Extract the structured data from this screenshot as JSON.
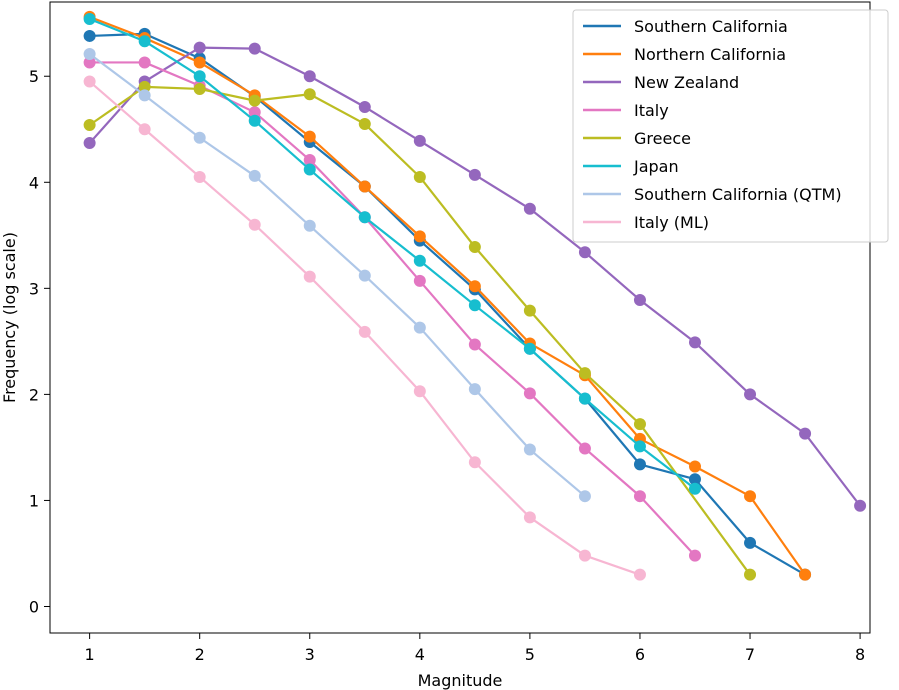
{
  "chart_data": {
    "type": "line",
    "title": "",
    "xlabel": "Magnitude",
    "ylabel": "Frequency (log scale)",
    "xlim": [
      0.64,
      8.09
    ],
    "ylim": [
      -0.25,
      5.7
    ],
    "xticks": [
      1,
      2,
      3,
      4,
      5,
      6,
      7,
      8
    ],
    "yticks": [
      0,
      1,
      2,
      3,
      4,
      5
    ],
    "grid": false,
    "legend_position": "top-right",
    "series": [
      {
        "name": "Southern California",
        "color": "#1f77b4",
        "x": [
          1,
          1.5,
          2,
          2.5,
          3,
          3.5,
          4,
          4.5,
          5,
          5.5,
          6,
          6.5,
          7,
          7.5
        ],
        "y": [
          5.38,
          5.4,
          5.17,
          4.81,
          4.38,
          3.96,
          3.45,
          2.99,
          2.43,
          1.96,
          1.34,
          1.2,
          0.6,
          0.3
        ]
      },
      {
        "name": "Northern California",
        "color": "#ff7f0e",
        "x": [
          1,
          1.5,
          2,
          2.5,
          3,
          3.5,
          4,
          4.5,
          5,
          5.5,
          6,
          6.5,
          7,
          7.5
        ],
        "y": [
          5.56,
          5.36,
          5.13,
          4.82,
          4.43,
          3.96,
          3.49,
          3.02,
          2.48,
          2.18,
          1.58,
          1.32,
          1.04,
          0.3
        ]
      },
      {
        "name": "New Zealand",
        "color": "#9467bd",
        "x": [
          1,
          1.5,
          2,
          2.5,
          3,
          3.5,
          4,
          4.5,
          5,
          5.5,
          6,
          6.5,
          7,
          7.5,
          8
        ],
        "y": [
          4.37,
          4.95,
          5.27,
          5.26,
          5.0,
          4.71,
          4.39,
          4.07,
          3.75,
          3.34,
          2.89,
          2.49,
          2.0,
          1.63,
          0.95
        ]
      },
      {
        "name": "Italy",
        "color": "#e377c2",
        "x": [
          1,
          1.5,
          2,
          2.5,
          3,
          3.5,
          4,
          4.5,
          5,
          5.5,
          6,
          6.5
        ],
        "y": [
          5.13,
          5.13,
          4.91,
          4.66,
          4.21,
          3.67,
          3.07,
          2.47,
          2.01,
          1.49,
          1.04,
          0.48
        ]
      },
      {
        "name": "Greece",
        "color": "#bcbd22",
        "x": [
          1,
          1.5,
          2,
          2.5,
          3,
          3.5,
          4,
          4.5,
          5,
          5.5,
          6,
          7
        ],
        "y": [
          4.54,
          4.9,
          4.88,
          4.77,
          4.83,
          4.55,
          4.05,
          3.39,
          2.79,
          2.2,
          1.72,
          0.3
        ]
      },
      {
        "name": "Japan",
        "color": "#17becf",
        "x": [
          1,
          1.5,
          2,
          2.5,
          3,
          3.5,
          4,
          4.5,
          5,
          5.5,
          6,
          6.5
        ],
        "y": [
          5.54,
          5.33,
          5.0,
          4.58,
          4.12,
          3.67,
          3.26,
          2.84,
          2.43,
          1.96,
          1.51,
          1.11
        ]
      },
      {
        "name": "Southern California (QTM)",
        "color": "#aec7e8",
        "x": [
          1,
          1.5,
          2,
          2.5,
          3,
          3.5,
          4,
          4.5,
          5,
          5.5
        ],
        "y": [
          5.21,
          4.82,
          4.42,
          4.06,
          3.59,
          3.12,
          2.63,
          2.05,
          1.48,
          1.04
        ]
      },
      {
        "name": "Italy (ML)",
        "color": "#f7b6d2",
        "x": [
          1,
          1.5,
          2,
          2.5,
          3,
          3.5,
          4,
          4.5,
          5,
          5.5,
          6
        ],
        "y": [
          4.95,
          4.5,
          4.05,
          3.6,
          3.11,
          2.59,
          2.03,
          1.36,
          0.84,
          0.48,
          0.3
        ]
      }
    ]
  }
}
